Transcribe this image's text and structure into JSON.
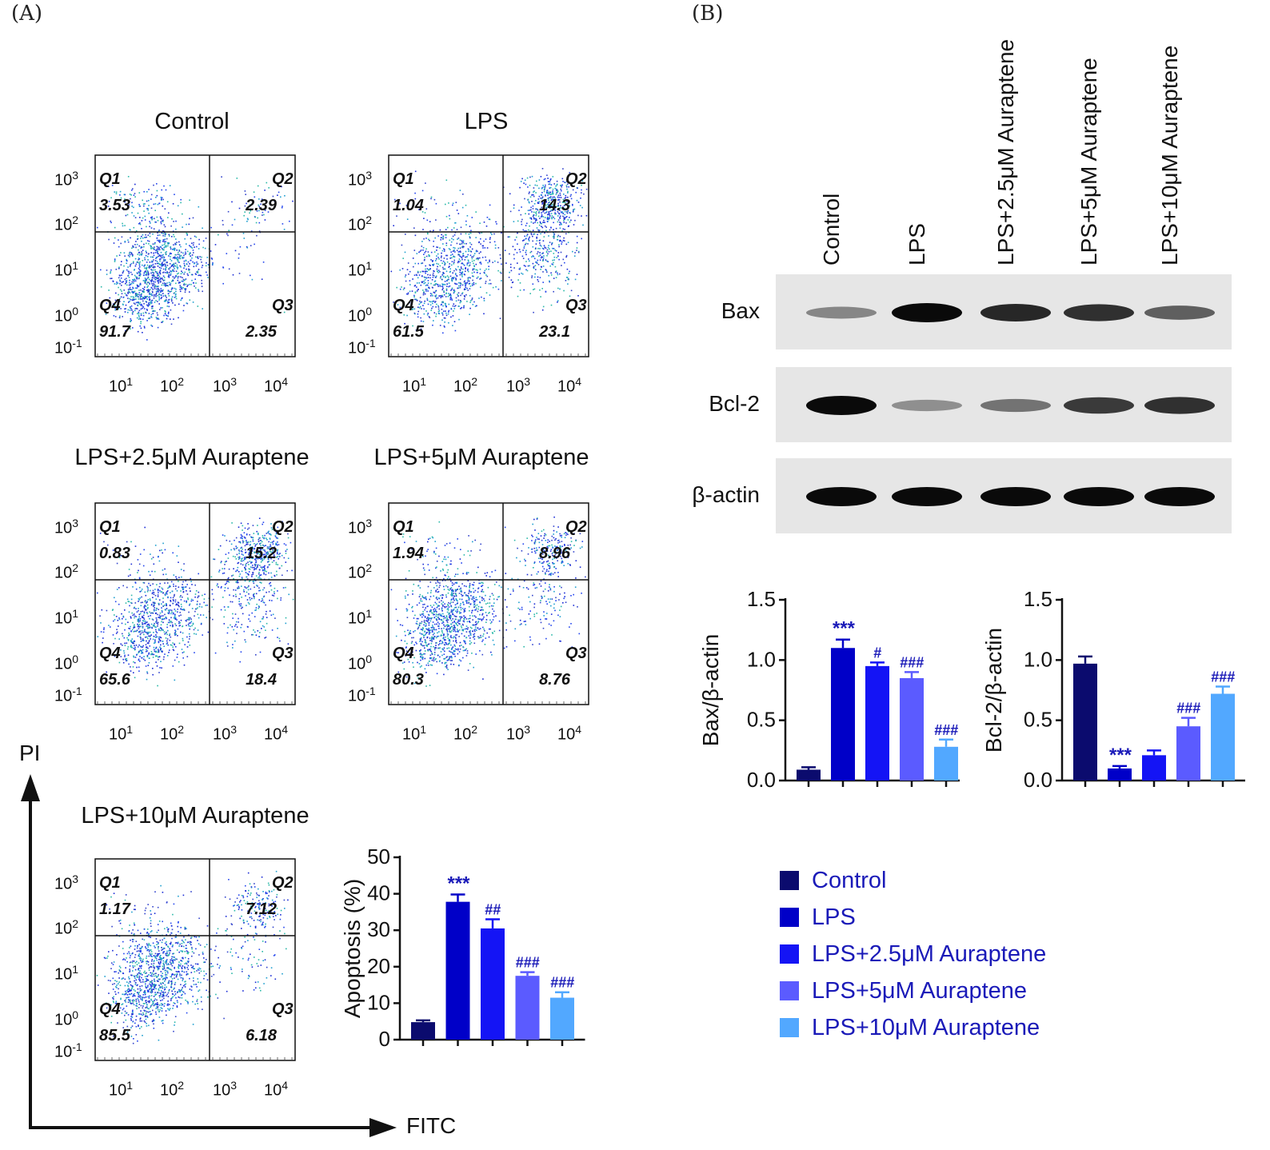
{
  "panels": {
    "a": "(A)",
    "b": "(B)"
  },
  "colors": [
    "#0b0b6e",
    "#0000c8",
    "#1414f5",
    "#5b5bff",
    "#52a8ff"
  ],
  "flow": {
    "tick_exponents": [
      "3",
      "2",
      "1",
      "0",
      "-1"
    ],
    "x_exponents": [
      "1",
      "2",
      "3",
      "4"
    ],
    "tick_base": "10",
    "plots": [
      {
        "title": "Control",
        "q1": "Q1",
        "q1v": "3.53",
        "q2": "Q2",
        "q2v": "2.39",
        "q3": "Q3",
        "q3v": "2.35",
        "q4": "Q4",
        "q4v": "91.7"
      },
      {
        "title": "LPS",
        "q1": "Q1",
        "q1v": "1.04",
        "q2": "Q2",
        "q2v": "14.3",
        "q3": "Q3",
        "q3v": "23.1",
        "q4": "Q4",
        "q4v": "61.5"
      },
      {
        "title": "LPS+2.5μM Auraptene",
        "q1": "Q1",
        "q1v": "0.83",
        "q2": "Q2",
        "q2v": "15.2",
        "q3": "Q3",
        "q3v": "18.4",
        "q4": "Q4",
        "q4v": "65.6"
      },
      {
        "title": "LPS+5μM Auraptene",
        "q1": "Q1",
        "q1v": "1.94",
        "q2": "Q2",
        "q2v": "8.96",
        "q3": "Q3",
        "q3v": "8.76",
        "q4": "Q4",
        "q4v": "80.3"
      },
      {
        "title": "LPS+10μM Auraptene",
        "q1": "Q1",
        "q1v": "1.17",
        "q2": "Q2",
        "q2v": "7.12",
        "q3": "Q3",
        "q3v": "6.18",
        "q4": "Q4",
        "q4v": "85.5"
      }
    ],
    "y_axis_word": "PI",
    "x_axis_word": "FITC"
  },
  "blot": {
    "lanes": [
      "Control",
      "LPS",
      "LPS+2.5μM Auraptene",
      "LPS+5μM Auraptene",
      "LPS+10μM Auraptene"
    ],
    "proteins": [
      "Bax",
      "Bcl-2",
      "β-actin"
    ],
    "band_intensity": {
      "Bax": [
        0.35,
        1.0,
        0.85,
        0.8,
        0.55
      ],
      "Bcl-2": [
        1.0,
        0.3,
        0.45,
        0.75,
        0.8
      ],
      "β-actin": [
        1.0,
        1.0,
        1.0,
        1.0,
        1.0
      ]
    }
  },
  "legend": {
    "items": [
      "Control",
      "LPS",
      "LPS+2.5μM Auraptene",
      "LPS+5μM Auraptene",
      "LPS+10μM Auraptene"
    ]
  },
  "chart_data": [
    {
      "type": "bar",
      "categories": [
        "Control",
        "LPS",
        "LPS+2.5μM Auraptene",
        "LPS+5μM Auraptene",
        "LPS+10μM Auraptene"
      ],
      "values": [
        4.8,
        37.8,
        30.5,
        17.5,
        11.5
      ],
      "errors": [
        0.5,
        2.0,
        2.5,
        1.0,
        1.5
      ],
      "significance": [
        "",
        "***",
        "##",
        "###",
        "###"
      ],
      "ylabel": "Apoptosis (%)",
      "ylim": [
        0,
        50
      ],
      "yticks": [
        "0",
        "10",
        "20",
        "30",
        "40",
        "50"
      ]
    },
    {
      "type": "bar",
      "categories": [
        "Control",
        "LPS",
        "LPS+2.5μM Auraptene",
        "LPS+5μM Auraptene",
        "LPS+10μM Auraptene"
      ],
      "values": [
        0.09,
        1.1,
        0.95,
        0.85,
        0.28
      ],
      "errors": [
        0.02,
        0.07,
        0.03,
        0.05,
        0.06
      ],
      "significance": [
        "",
        "***",
        "#",
        "###",
        "###"
      ],
      "ylabel": "Bax/β-actin",
      "ylim": [
        0,
        1.5
      ],
      "yticks": [
        "0.0",
        "0.5",
        "1.0",
        "1.5"
      ]
    },
    {
      "type": "bar",
      "categories": [
        "Control",
        "LPS",
        "LPS+2.5μM Auraptene",
        "LPS+5μM Auraptene",
        "LPS+10μM Auraptene"
      ],
      "values": [
        0.97,
        0.1,
        0.21,
        0.45,
        0.72
      ],
      "errors": [
        0.06,
        0.02,
        0.04,
        0.07,
        0.06
      ],
      "significance": [
        "",
        "***",
        "",
        "###",
        "###"
      ],
      "ylabel": "Bcl-2/β-actin",
      "ylim": [
        0,
        1.5
      ],
      "yticks": [
        "0.0",
        "0.5",
        "1.0",
        "1.5"
      ]
    }
  ]
}
